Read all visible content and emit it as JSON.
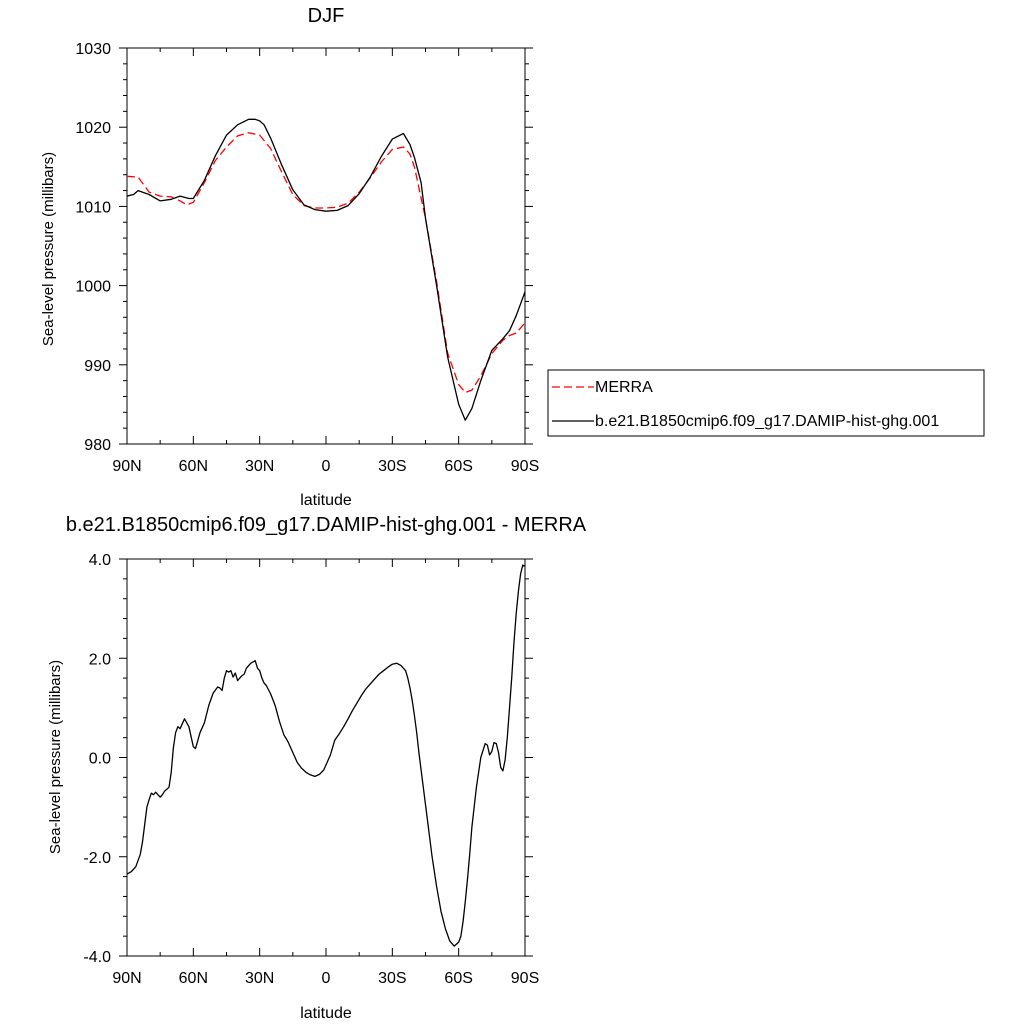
{
  "chart_data": [
    {
      "type": "line",
      "title": "DJF",
      "xlabel": "latitude",
      "ylabel": "Sea-level pressure (millibars)",
      "xlim": [
        90,
        -90
      ],
      "ylim": [
        980,
        1030
      ],
      "x_ticks": [
        90,
        60,
        30,
        0,
        -30,
        -60,
        -90
      ],
      "x_tick_labels": [
        "90N",
        "60N",
        "30N",
        "0",
        "30S",
        "60S",
        "90S"
      ],
      "y_ticks": [
        980,
        990,
        1000,
        1010,
        1020,
        1030
      ],
      "y_tick_labels": [
        "980",
        "990",
        "1000",
        "1010",
        "1020",
        "1030"
      ],
      "grid": false,
      "legend_position": "right",
      "series": [
        {
          "name": "MERRA",
          "color": "#ff0000",
          "dash": "dashed",
          "x": [
            90,
            85,
            80,
            75,
            70,
            66,
            63,
            60,
            55,
            50,
            45,
            40,
            35,
            30,
            25,
            20,
            15,
            10,
            5,
            0,
            -5,
            -10,
            -15,
            -20,
            -25,
            -30,
            -35,
            -38,
            -40,
            -45,
            -50,
            -55,
            -60,
            -63,
            -66,
            -70,
            -75,
            -80,
            -83,
            -86,
            -90
          ],
          "values": [
            1013.8,
            1013.7,
            1011.8,
            1011.3,
            1011.2,
            1010.7,
            1010.2,
            1010.5,
            1013.0,
            1015.8,
            1017.5,
            1018.9,
            1019.3,
            1019.0,
            1017.3,
            1014.3,
            1011.5,
            1010.1,
            1009.8,
            1009.8,
            1009.9,
            1010.4,
            1011.8,
            1013.6,
            1015.6,
            1017.2,
            1017.5,
            1016.6,
            1015.0,
            1008.5,
            1000.5,
            991.5,
            987.5,
            986.5,
            986.8,
            988.6,
            991.4,
            993.1,
            993.7,
            994.0,
            995.3
          ]
        },
        {
          "name": "b.e21.B1850cmip6.f09_g17.DAMIP-hist-ghg.001",
          "color": "#000000",
          "dash": "solid",
          "x": [
            90,
            87,
            85,
            80,
            75,
            70,
            66,
            62,
            60,
            55,
            50,
            45,
            40,
            35,
            32,
            30,
            28,
            25,
            20,
            15,
            10,
            5,
            0,
            -5,
            -10,
            -15,
            -20,
            -25,
            -30,
            -35,
            -38,
            -40,
            -43,
            -45,
            -50,
            -55,
            -60,
            -63,
            -66,
            -70,
            -75,
            -80,
            -83,
            -86,
            -90
          ],
          "values": [
            1011.3,
            1011.5,
            1012.0,
            1011.5,
            1010.7,
            1010.9,
            1011.3,
            1011.0,
            1011.0,
            1013.3,
            1016.4,
            1019.0,
            1020.3,
            1021.0,
            1021.0,
            1020.8,
            1020.3,
            1018.6,
            1015.2,
            1012.1,
            1010.2,
            1009.6,
            1009.4,
            1009.5,
            1010.1,
            1011.6,
            1013.7,
            1016.3,
            1018.5,
            1019.2,
            1017.8,
            1016.2,
            1013.0,
            1008.5,
            1000.0,
            991.0,
            985.0,
            983.0,
            984.5,
            988.0,
            991.8,
            993.3,
            994.3,
            996.2,
            999.2
          ]
        }
      ]
    },
    {
      "type": "line",
      "title": "b.e21.B1850cmip6.f09_g17.DAMIP-hist-ghg.001 - MERRA",
      "xlabel": "latitude",
      "ylabel": "Sea-level pressure (millibars)",
      "xlim": [
        90,
        -90
      ],
      "ylim": [
        -4.0,
        4.0
      ],
      "x_ticks": [
        90,
        60,
        30,
        0,
        -30,
        -60,
        -90
      ],
      "x_tick_labels": [
        "90N",
        "60N",
        "30N",
        "0",
        "30S",
        "60S",
        "90S"
      ],
      "y_ticks": [
        -4,
        -2,
        0,
        2,
        4
      ],
      "y_tick_labels": [
        "-4.0",
        "-2.0",
        "0.0",
        "2.0",
        "4.0"
      ],
      "grid": false,
      "series": [
        {
          "color": "#000000",
          "dash": "solid",
          "x": [
            90,
            88,
            86,
            84,
            83,
            82,
            81,
            80,
            79,
            78,
            77,
            75,
            74,
            73,
            71,
            70,
            69,
            68,
            67,
            66,
            64,
            62,
            61,
            60,
            59,
            57,
            55,
            53,
            51,
            49,
            48,
            47,
            46,
            45,
            44,
            43,
            42,
            41,
            40,
            39,
            38,
            37,
            36,
            34,
            32,
            31,
            30,
            29,
            28,
            27,
            25,
            23,
            21,
            19,
            18,
            17,
            15,
            13,
            11,
            9,
            7,
            5,
            3,
            1,
            0,
            -2,
            -4,
            -6,
            -8,
            -10,
            -12,
            -14,
            -16,
            -18,
            -20,
            -22,
            -24,
            -26,
            -28,
            -30,
            -32,
            -34,
            -36,
            -37,
            -38,
            -39,
            -40,
            -41,
            -42,
            -44,
            -46,
            -48,
            -50,
            -52,
            -54,
            -56,
            -58,
            -60,
            -61,
            -62,
            -63,
            -64,
            -65,
            -66,
            -68,
            -70,
            -72,
            -73,
            -74,
            -75,
            -76,
            -77,
            -78,
            -79,
            -80,
            -81,
            -82,
            -83,
            -84,
            -85,
            -86,
            -87,
            -88,
            -89,
            -90
          ],
          "values": [
            -2.35,
            -2.3,
            -2.2,
            -1.95,
            -1.7,
            -1.35,
            -1.0,
            -0.85,
            -0.72,
            -0.75,
            -0.7,
            -0.8,
            -0.75,
            -0.68,
            -0.6,
            -0.3,
            0.2,
            0.5,
            0.62,
            0.58,
            0.78,
            0.62,
            0.42,
            0.22,
            0.18,
            0.5,
            0.7,
            1.05,
            1.3,
            1.42,
            1.4,
            1.35,
            1.6,
            1.75,
            1.72,
            1.75,
            1.62,
            1.7,
            1.55,
            1.6,
            1.65,
            1.68,
            1.8,
            1.9,
            1.95,
            1.8,
            1.75,
            1.6,
            1.5,
            1.45,
            1.28,
            1.05,
            0.72,
            0.45,
            0.38,
            0.3,
            0.1,
            -0.1,
            -0.22,
            -0.3,
            -0.35,
            -0.38,
            -0.34,
            -0.25,
            -0.15,
            0.05,
            0.35,
            0.48,
            0.62,
            0.78,
            0.95,
            1.1,
            1.25,
            1.38,
            1.48,
            1.58,
            1.68,
            1.75,
            1.82,
            1.88,
            1.9,
            1.85,
            1.75,
            1.6,
            1.4,
            1.15,
            0.85,
            0.5,
            0.1,
            -0.6,
            -1.3,
            -2.0,
            -2.6,
            -3.1,
            -3.45,
            -3.7,
            -3.8,
            -3.72,
            -3.6,
            -3.3,
            -2.9,
            -2.45,
            -1.95,
            -1.4,
            -0.6,
            0.0,
            0.28,
            0.25,
            0.05,
            0.12,
            0.3,
            0.28,
            0.1,
            -0.2,
            -0.27,
            -0.05,
            0.4,
            1.0,
            1.6,
            2.3,
            2.9,
            3.35,
            3.7,
            3.88,
            3.85
          ]
        }
      ]
    }
  ]
}
